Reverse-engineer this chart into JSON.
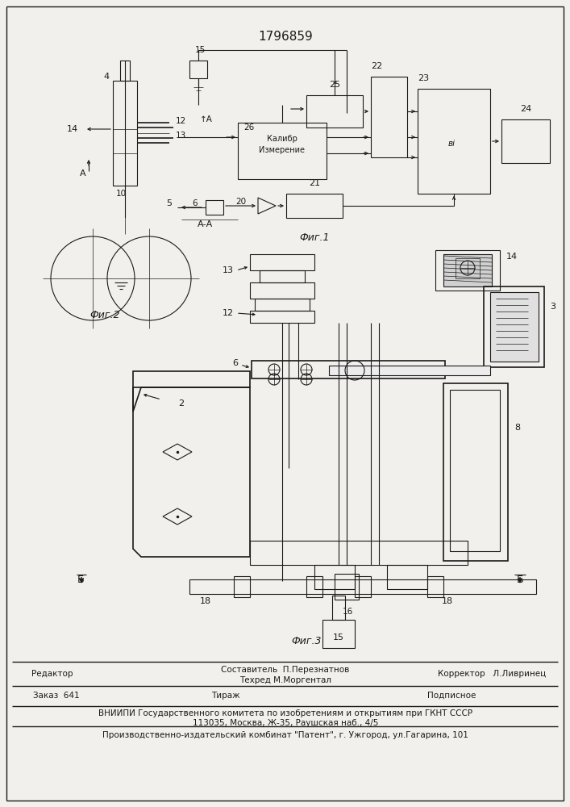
{
  "patent_number": "1796859",
  "bg": "#f2f0ec",
  "lc": "#1a1a1a",
  "fig1_label": "Фиг.1",
  "fig2_label": "Фиг.2",
  "fig3_label": "Фиг.3",
  "footer_editor": "Редактор",
  "footer_comp": "Составитель  П.Перезнатнов",
  "footer_tech": "Техред М.Моргентал",
  "footer_corr": "Корректор   Л.Ливринец",
  "footer_order": "Заказ  641",
  "footer_circ": "Тираж",
  "footer_sub": "Подписное",
  "footer_vniip": "ВНИИПИ Государственного комитета по изобретениям и открытиям при ГКНТ СССР",
  "footer_addr": "113035, Москва, Ж-35, Раушская наб., 4/5",
  "footer_prod": "Производственно-издательский комбинат \"Патент\", г. Ужгород, ул.Гагарина, 101"
}
